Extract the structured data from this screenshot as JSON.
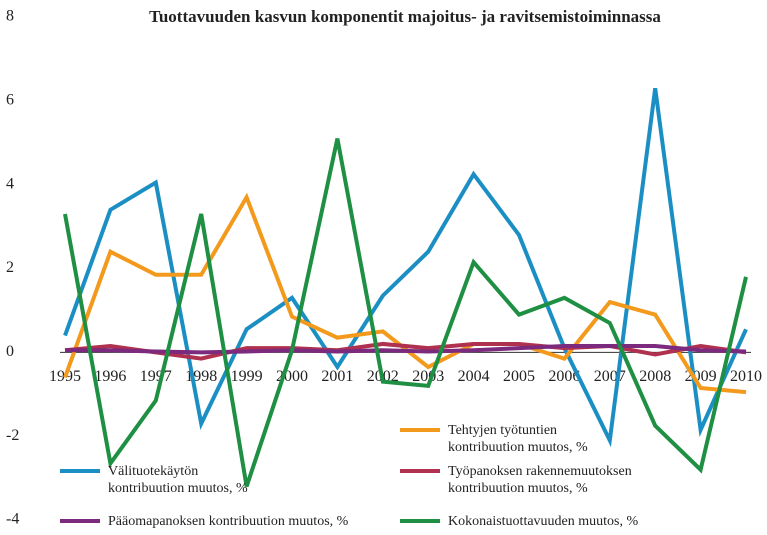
{
  "chart_data": {
    "type": "line",
    "title": "Tuottavuuden kasvun komponentit majoitus- ja ravitsemistoiminnassa",
    "categories": [
      "1995",
      "1996",
      "1997",
      "1998",
      "1999",
      "2000",
      "2001",
      "2002",
      "2003",
      "2004",
      "2005",
      "2006",
      "2007",
      "2008",
      "2009",
      "2010"
    ],
    "ylim": [
      -4,
      8
    ],
    "yticks": [
      -4,
      -2,
      0,
      2,
      4,
      6,
      8
    ],
    "grid": false,
    "series": [
      {
        "name": "Välituotekäytön kontribuution muutos, %",
        "color": "#1b8fc3",
        "values": [
          0.4,
          3.4,
          4.05,
          -1.7,
          0.55,
          1.3,
          -0.35,
          1.35,
          2.4,
          4.25,
          2.8,
          0.1,
          -2.1,
          6.3,
          -1.85,
          0.55
        ]
      },
      {
        "name": "Tehtyjen työtuntien kontribuution muutos, %",
        "color": "#f39a1d",
        "values": [
          -0.6,
          2.4,
          1.85,
          1.85,
          3.7,
          0.85,
          0.35,
          0.5,
          -0.35,
          0.2,
          0.2,
          -0.15,
          1.2,
          0.9,
          -0.85,
          -0.95
        ]
      },
      {
        "name": "Työpanoksen rakennemuutoksen kontribuution muutos, %",
        "color": "#b0304f",
        "values": [
          0.05,
          0.15,
          0.0,
          -0.15,
          0.1,
          0.1,
          0.05,
          0.2,
          0.1,
          0.2,
          0.2,
          0.1,
          0.15,
          -0.05,
          0.15,
          0.0
        ]
      },
      {
        "name": "Pääomapanoksen kontribuution muutos, %",
        "color": "#7b2a7e",
        "values": [
          0.05,
          0.05,
          0.02,
          0.0,
          0.02,
          0.05,
          0.02,
          0.05,
          0.02,
          0.05,
          0.1,
          0.15,
          0.15,
          0.15,
          0.05,
          0.02
        ]
      },
      {
        "name": "Kokonaistuottavuuden muutos, %",
        "color": "#1f8f43",
        "values": [
          3.3,
          -2.65,
          -1.15,
          3.3,
          -3.2,
          0.05,
          5.1,
          -0.7,
          -0.8,
          2.15,
          0.9,
          1.3,
          0.7,
          -1.75,
          -2.8,
          1.8
        ]
      }
    ]
  }
}
